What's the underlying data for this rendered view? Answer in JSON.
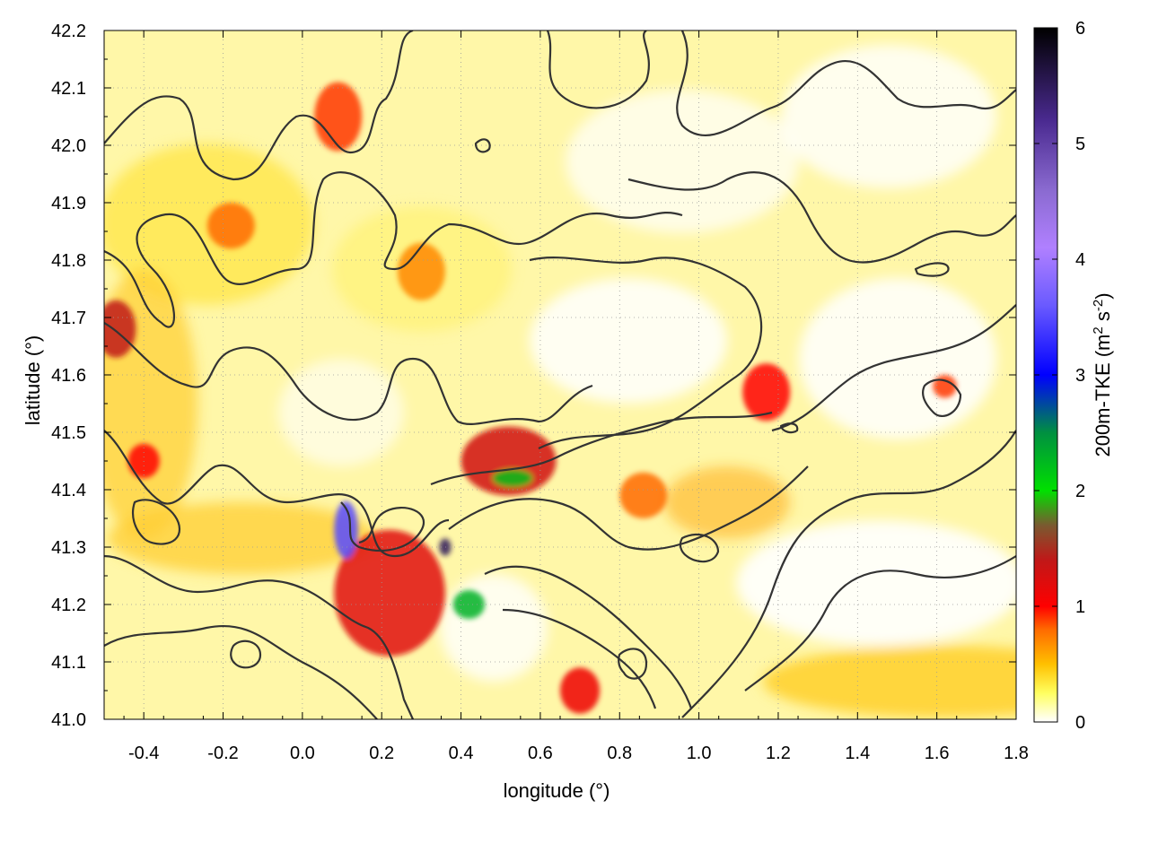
{
  "chart_data": {
    "type": "heatmap",
    "title": "",
    "xlabel": "longitude (°)",
    "ylabel": "latitude (°)",
    "xlim": [
      -0.5,
      1.8
    ],
    "ylim": [
      41.0,
      42.2
    ],
    "x_ticks": [
      -0.4,
      -0.2,
      0.0,
      0.2,
      0.4,
      0.6,
      0.8,
      1.0,
      1.2,
      1.4,
      1.6,
      1.8
    ],
    "x_tick_labels": [
      "-0.4",
      "-0.2",
      "0.0",
      "0.2",
      "0.4",
      "0.6",
      "0.8",
      "1.0",
      "1.2",
      "1.4",
      "1.6",
      "1.8"
    ],
    "y_ticks": [
      41.0,
      41.1,
      41.2,
      41.3,
      41.4,
      41.5,
      41.6,
      41.7,
      41.8,
      41.9,
      42.0,
      42.1,
      42.2
    ],
    "y_tick_labels": [
      "41.0",
      "41.1",
      "41.2",
      "41.3",
      "41.4",
      "41.5",
      "41.6",
      "41.7",
      "41.8",
      "41.9",
      "42.0",
      "42.1",
      "42.2"
    ],
    "grid": true,
    "colorbar": {
      "label_main": "200m-TKE (m",
      "label_sup1": "2",
      "label_mid": " s",
      "label_sup2": "-2",
      "label_end": ")",
      "range": [
        0,
        6
      ],
      "ticks": [
        0,
        1,
        2,
        3,
        4,
        5,
        6
      ],
      "tick_labels": [
        "0",
        "1",
        "2",
        "3",
        "4",
        "5",
        "6"
      ],
      "colors": [
        {
          "v": 0.0,
          "c": "#ffffff"
        },
        {
          "v": 0.25,
          "c": "#ffff60"
        },
        {
          "v": 0.5,
          "c": "#ffc000"
        },
        {
          "v": 0.8,
          "c": "#ff6a00"
        },
        {
          "v": 1.0,
          "c": "#ff0000"
        },
        {
          "v": 1.4,
          "c": "#c01818"
        },
        {
          "v": 1.7,
          "c": "#7a5a30"
        },
        {
          "v": 2.0,
          "c": "#00e000"
        },
        {
          "v": 2.5,
          "c": "#009040"
        },
        {
          "v": 3.0,
          "c": "#0000ff"
        },
        {
          "v": 3.6,
          "c": "#6a5aff"
        },
        {
          "v": 4.1,
          "c": "#b080ff"
        },
        {
          "v": 4.6,
          "c": "#8a6ad0"
        },
        {
          "v": 5.2,
          "c": "#4a2a90"
        },
        {
          "v": 6.0,
          "c": "#000000"
        }
      ]
    },
    "hotspots": [
      {
        "lon": -0.47,
        "lat": 41.68,
        "tke": 1.4,
        "rx": 0.05,
        "ry": 0.05
      },
      {
        "lon": 0.52,
        "lat": 41.45,
        "tke": 1.3,
        "rx": 0.12,
        "ry": 0.06
      },
      {
        "lon": 0.53,
        "lat": 41.42,
        "tke": 2.2,
        "rx": 0.05,
        "ry": 0.015
      },
      {
        "lon": 0.22,
        "lat": 41.22,
        "tke": 1.2,
        "rx": 0.14,
        "ry": 0.11
      },
      {
        "lon": 0.42,
        "lat": 41.2,
        "tke": 2.3,
        "rx": 0.04,
        "ry": 0.025
      },
      {
        "lon": 0.11,
        "lat": 41.33,
        "tke": 3.5,
        "rx": 0.03,
        "ry": 0.05
      },
      {
        "lon": 0.36,
        "lat": 41.3,
        "tke": 5.5,
        "rx": 0.015,
        "ry": 0.015
      },
      {
        "lon": 1.17,
        "lat": 41.57,
        "tke": 1.0,
        "rx": 0.06,
        "ry": 0.05
      },
      {
        "lon": 0.09,
        "lat": 42.05,
        "tke": 0.9,
        "rx": 0.06,
        "ry": 0.06
      },
      {
        "lon": -0.18,
        "lat": 41.86,
        "tke": 0.8,
        "rx": 0.06,
        "ry": 0.04
      },
      {
        "lon": 1.62,
        "lat": 41.58,
        "tke": 0.9,
        "rx": 0.03,
        "ry": 0.02
      },
      {
        "lon": -0.4,
        "lat": 41.45,
        "tke": 1.0,
        "rx": 0.04,
        "ry": 0.03
      },
      {
        "lon": 0.7,
        "lat": 41.05,
        "tke": 1.1,
        "rx": 0.05,
        "ry": 0.04
      },
      {
        "lon": 0.86,
        "lat": 41.39,
        "tke": 0.8,
        "rx": 0.06,
        "ry": 0.04
      },
      {
        "lon": 0.3,
        "lat": 41.78,
        "tke": 0.7,
        "rx": 0.06,
        "ry": 0.05
      }
    ]
  }
}
